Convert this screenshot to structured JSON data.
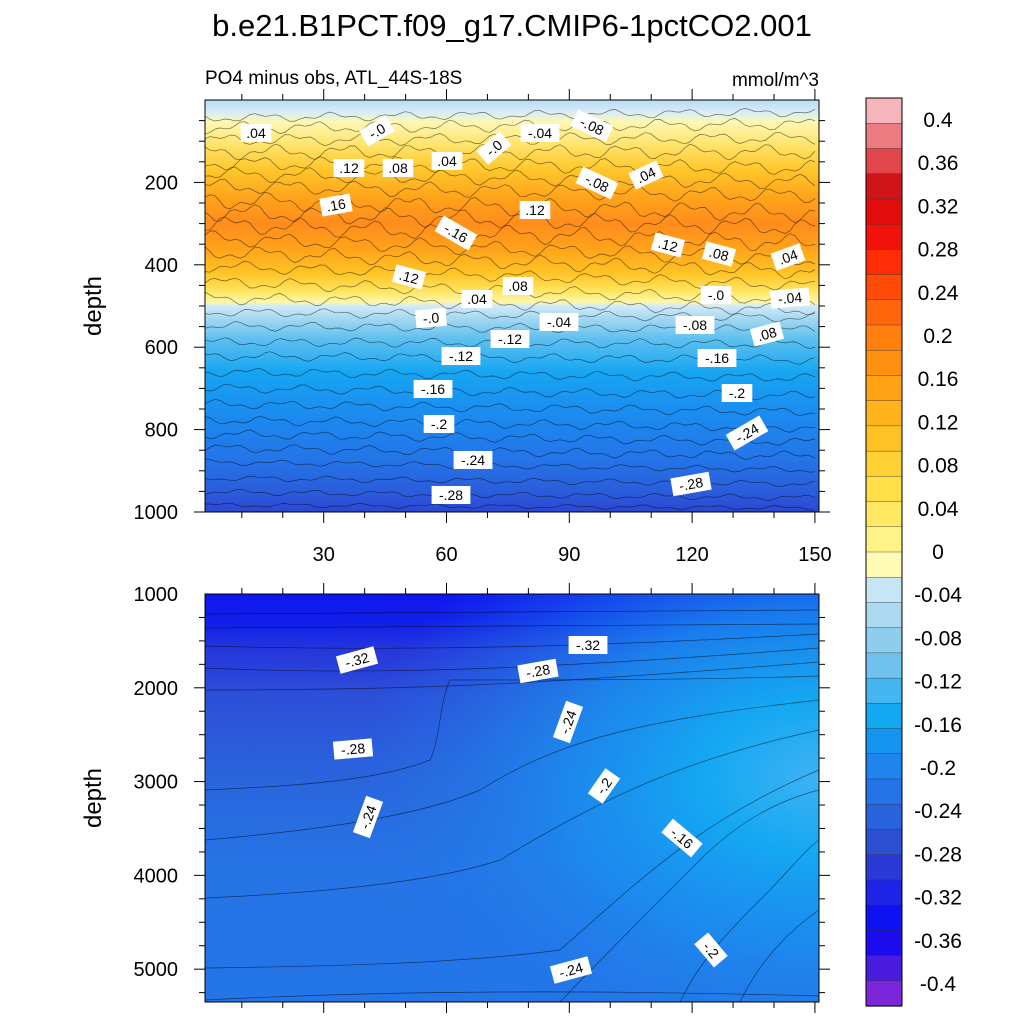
{
  "chart_data": {
    "type": "heatmap",
    "title": "b.e21.B1PCT.f09_g17.CMIP6-1pctCO2.001",
    "subtitle_left": "PO4 minus obs, ATL_44S-18S",
    "subtitle_right": "mmol/m^3",
    "colorbar": {
      "levels": [
        -0.4,
        -0.36,
        -0.32,
        -0.28,
        -0.24,
        -0.2,
        -0.16,
        -0.12,
        -0.08,
        -0.04,
        0,
        0.04,
        0.08,
        0.12,
        0.16,
        0.2,
        0.24,
        0.28,
        0.32,
        0.36,
        0.4
      ],
      "labels": [
        "0.4",
        "0.36",
        "0.32",
        "0.28",
        "0.24",
        "0.2",
        "0.16",
        "0.12",
        "0.08",
        "0.04",
        "0",
        "-0.04",
        "-0.08",
        "-0.12",
        "-0.16",
        "-0.2",
        "-0.24",
        "-0.28",
        "-0.32",
        "-0.36",
        "-0.4"
      ],
      "colors": [
        "#f6b4bb",
        "#ec7b81",
        "#e0474d",
        "#cf1517",
        "#e20d0d",
        "#f2120c",
        "#ff2d06",
        "#ff4a08",
        "#ff660c",
        "#ff7f0f",
        "#ff9110",
        "#ffa214",
        "#ffb31b",
        "#ffc224",
        "#ffd134",
        "#ffde48",
        "#ffe962",
        "#fff388",
        "#fffab4",
        "#c8e5f6",
        "#aad9f0",
        "#8ecded",
        "#6fc2ee",
        "#45b6f2",
        "#13a9f2",
        "#1695f0",
        "#1f84ee",
        "#2573e8",
        "#2a62dd",
        "#2d50d3",
        "#2b3ad6",
        "#1e25e6",
        "#0d12f2",
        "#1a0cee",
        "#4a1ce0",
        "#7b26d8"
      ]
    },
    "panels": [
      {
        "name": "upper",
        "xlabel": "",
        "ylabel": "depth",
        "xlim": [
          1,
          151
        ],
        "ylim": [
          1000,
          0
        ],
        "xticks": [
          "30",
          "60",
          "90",
          "120",
          "150"
        ],
        "yticks": [
          "200",
          "400",
          "600",
          "800",
          "1000"
        ],
        "contour_labels": [
          ".04",
          "-.0",
          "-.04",
          "-.08",
          ".12",
          ".08",
          ".04",
          "-.0",
          "-.08",
          ".04",
          ".16",
          ".12",
          "-.16",
          ".12",
          ".08",
          ".04",
          ".12",
          ".08",
          ".04",
          "-.0",
          "-.04",
          "-.0",
          "-.04",
          "-.08",
          ".08",
          "-.12",
          "-.12",
          "-.16",
          "-.16",
          "-.2",
          "-.2",
          "-.24",
          "-.24",
          "-.28",
          "-.28"
        ]
      },
      {
        "name": "lower",
        "xlabel": "",
        "ylabel": "depth",
        "xlim": [
          1,
          151
        ],
        "ylim": [
          5350,
          1000
        ],
        "xticks": [],
        "yticks": [
          "1000",
          "2000",
          "3000",
          "4000",
          "5000"
        ],
        "contour_labels": [
          "-.32",
          "-.32",
          "-.28",
          "-.28",
          "-.24",
          "-.24",
          "-.2",
          "-.16",
          "-.24",
          "-.2"
        ]
      }
    ]
  }
}
